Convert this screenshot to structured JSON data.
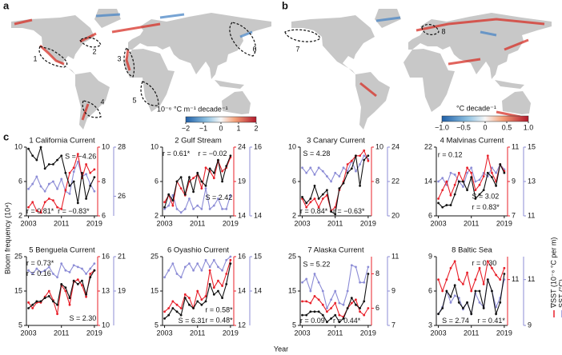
{
  "figure": {
    "panel_c_label": "c",
    "y_label": "Bloom frequency (10⁴)",
    "x_label": "Year",
    "legend": [
      {
        "name": "∇SST (10⁻⁶ °C per m)",
        "color": "#e8202a"
      },
      {
        "name": "SST (°C)",
        "color": "#8c8cd6"
      }
    ]
  },
  "maps": [
    {
      "label": "a",
      "colorbar_label": "10⁻⁶ °C m⁻¹ decade⁻¹",
      "colorbar_ticks": [
        {
          "value": -2,
          "label": "−2"
        },
        {
          "value": -1,
          "label": "−1"
        },
        0,
        1,
        2
      ],
      "colorbar_lim": [
        -2,
        2
      ],
      "regions": [
        "1",
        "2",
        "3",
        "4",
        "5",
        "6"
      ]
    },
    {
      "label": "b",
      "colorbar_label": "°C decade⁻¹",
      "colorbar_ticks": [
        {
          "value": -1,
          "label": "−1.0"
        },
        {
          "value": -0.5,
          "label": "−0.5"
        },
        0,
        {
          "value": 0.5,
          "label": "0.5"
        },
        {
          "value": 1,
          "label": "1.0"
        }
      ],
      "colorbar_lim": [
        -1,
        1
      ],
      "regions": [
        "7",
        "8"
      ]
    }
  ],
  "chart_data": [
    {
      "type": "line",
      "title": "1 California Current",
      "x": [
        2003,
        2004,
        2005,
        2006,
        2007,
        2008,
        2009,
        2010,
        2011,
        2012,
        2013,
        2014,
        2015,
        2016,
        2017,
        2018,
        2019
      ],
      "xlim": [
        2002.5,
        2019.8
      ],
      "xticks": [
        2003,
        2011,
        2019
      ],
      "ylim": [
        2,
        10
      ],
      "yticks": [
        2,
        6,
        10
      ],
      "y2lim": [
        6,
        10
      ],
      "y2ticks": [
        6,
        8,
        10
      ],
      "y3lim": [
        25.2,
        28
      ],
      "y3ticks": [
        26,
        28
      ],
      "series": [
        {
          "color": "#111111",
          "values": [
            9.8,
            9,
            8.5,
            10,
            7.5,
            8,
            8,
            8.5,
            9,
            7,
            5.5,
            6,
            3.5,
            7,
            4,
            5.5,
            6.5
          ]
        },
        {
          "color": "#e8202a",
          "axis": "y2",
          "values": [
            6.5,
            6.8,
            6.3,
            6.2,
            6.8,
            7,
            6.9,
            6.5,
            6.4,
            7.5,
            8.5,
            8.8,
            9.6,
            8.2,
            9,
            8.5,
            8.7
          ]
        },
        {
          "color": "#8c8cd6",
          "axis": "y3",
          "values": [
            26.3,
            26.5,
            26.8,
            26.4,
            26.2,
            26.5,
            26.6,
            26.3,
            26.7,
            26.2,
            26.1,
            27,
            27.4,
            26.8,
            26.9,
            26.5,
            26.2
          ]
        }
      ],
      "annotations": [
        {
          "text": "S = −4.26",
          "color": "#111111"
        },
        {
          "text": "r = 0.81*",
          "color": "#e8202a"
        },
        {
          "text": "r = −0.83*",
          "color": "#8c8cd6"
        }
      ]
    },
    {
      "type": "line",
      "title": "2 Gulf Stream",
      "x": [
        2003,
        2004,
        2005,
        2006,
        2007,
        2008,
        2009,
        2010,
        2011,
        2012,
        2013,
        2014,
        2015,
        2016,
        2017,
        2018,
        2019
      ],
      "xlim": [
        2002.5,
        2019.8
      ],
      "xticks": [
        2003,
        2011,
        2019
      ],
      "ylim": [
        2,
        10
      ],
      "yticks": [
        2,
        6,
        10
      ],
      "y2lim": [
        14,
        24
      ],
      "y2ticks": [
        14,
        19,
        24
      ],
      "y3lim": [
        14,
        16
      ],
      "y3ticks": [
        14,
        16
      ],
      "series": [
        {
          "color": "#111111",
          "values": [
            3,
            4.5,
            3.8,
            6,
            6.5,
            4.5,
            6.5,
            4.8,
            7,
            6,
            5.5,
            7.5,
            7,
            8.5,
            6,
            7.8,
            9
          ]
        },
        {
          "color": "#e8202a",
          "axis": "y2",
          "values": [
            16,
            17,
            15.5,
            19,
            18,
            17,
            19,
            19.5,
            20,
            18,
            21,
            20.5,
            19.5,
            22,
            20.5,
            21,
            22.5
          ]
        },
        {
          "color": "#8c8cd6",
          "axis": "y3",
          "values": [
            14.2,
            14.3,
            14.6,
            14.2,
            14.1,
            14.2,
            14.5,
            14.2,
            14.3,
            14.2,
            14.8,
            14.2,
            14.3,
            14.5,
            14.2,
            14.2,
            14.6
          ]
        }
      ],
      "annotations": [
        {
          "text": "r = 0.61*",
          "color": "#e8202a"
        },
        {
          "text": "r = −0.02",
          "color": "#8c8cd6"
        },
        {
          "text": "S = 2.42",
          "color": "#111111"
        }
      ]
    },
    {
      "type": "line",
      "title": "3 Canary Current",
      "x": [
        2003,
        2004,
        2005,
        2006,
        2007,
        2008,
        2009,
        2010,
        2011,
        2012,
        2013,
        2014,
        2015,
        2016,
        2017,
        2018,
        2019
      ],
      "xlim": [
        2002.5,
        2019.8
      ],
      "xticks": [
        2003,
        2011,
        2019
      ],
      "ylim": [
        2,
        10
      ],
      "yticks": [
        2,
        6,
        10
      ],
      "y2lim": [
        6,
        10
      ],
      "y2ticks": [
        8,
        10
      ],
      "y3lim": [
        20,
        24
      ],
      "y3ticks": [
        20,
        22,
        24
      ],
      "series": [
        {
          "color": "#111111",
          "values": [
            4.2,
            3.5,
            4,
            5.5,
            4,
            4.5,
            5,
            2.5,
            2.2,
            5.2,
            5.8,
            7,
            7.5,
            9,
            5.5,
            8.5,
            9
          ]
        },
        {
          "color": "#e8202a",
          "axis": "y2",
          "values": [
            7,
            6.5,
            6.8,
            7,
            6.5,
            7,
            7.2,
            6.3,
            6.5,
            7.5,
            8,
            9,
            9.2,
            9.5,
            9.5,
            9.8,
            9.2
          ]
        },
        {
          "color": "#8c8cd6",
          "axis": "y3",
          "values": [
            22.8,
            22.5,
            22.8,
            22.4,
            22.8,
            22.6,
            22.3,
            22,
            22.5,
            22.3,
            22.8,
            22.6,
            23.2,
            22.6,
            23,
            23.5,
            23.3
          ]
        }
      ],
      "annotations": [
        {
          "text": "S = 4.28",
          "color": "#111111"
        },
        {
          "text": "r = 0.84*",
          "color": "#e8202a"
        },
        {
          "text": "r = −0.63*",
          "color": "#8c8cd6"
        }
      ]
    },
    {
      "type": "line",
      "title": "4 Malvinas Current",
      "x": [
        2003,
        2004,
        2005,
        2006,
        2007,
        2008,
        2009,
        2010,
        2011,
        2012,
        2013,
        2014,
        2015,
        2016,
        2017,
        2018,
        2019
      ],
      "xlim": [
        2002.5,
        2019.8
      ],
      "xticks": [
        2003,
        2011,
        2019
      ],
      "ylim": [
        6,
        22
      ],
      "yticks": [
        6,
        14,
        22
      ],
      "y2lim": [
        7,
        11
      ],
      "y2ticks": [
        7,
        9,
        11
      ],
      "y3lim": [
        11,
        15
      ],
      "y3ticks": [
        11,
        13,
        15
      ],
      "series": [
        {
          "color": "#111111",
          "values": [
            9,
            8,
            8.5,
            8.5,
            11,
            14,
            14,
            12,
            15,
            10,
            11,
            12,
            16,
            15,
            13,
            18,
            16
          ]
        },
        {
          "color": "#e8202a",
          "axis": "y2",
          "values": [
            8,
            8.5,
            9,
            8.2,
            8.8,
            9.5,
            9,
            9.8,
            9.5,
            8.5,
            8.8,
            9.3,
            10.5,
            9.5,
            9,
            10,
            9.6
          ]
        },
        {
          "color": "#8c8cd6",
          "axis": "y3",
          "values": [
            13,
            13.2,
            12.8,
            13.5,
            13.4,
            13,
            12.7,
            13.5,
            13.8,
            13,
            13.1,
            13.5,
            13.3,
            13.8,
            13.5,
            14,
            13.7
          ]
        }
      ],
      "annotations": [
        {
          "text": "r = 0.12",
          "color": "#8c8cd6"
        },
        {
          "text": "S = 3.02",
          "color": "#111111"
        },
        {
          "text": "r = 0.83*",
          "color": "#e8202a"
        }
      ]
    },
    {
      "type": "line",
      "title": "5 Benguela Current",
      "x": [
        2003,
        2004,
        2005,
        2006,
        2007,
        2008,
        2009,
        2010,
        2011,
        2012,
        2013,
        2014,
        2015,
        2016,
        2017,
        2018,
        2019
      ],
      "xlim": [
        2002.5,
        2019.8
      ],
      "xticks": [
        2003,
        2011,
        2019
      ],
      "ylim": [
        5,
        25
      ],
      "yticks": [
        5,
        15,
        25
      ],
      "y2lim": [
        10,
        16
      ],
      "y2ticks": [
        10,
        13,
        16
      ],
      "y3lim": [
        17,
        21
      ],
      "y3ticks": [
        19,
        21
      ],
      "series": [
        {
          "color": "#111111",
          "values": [
            10,
            11,
            12,
            12,
            13,
            13.5,
            12,
            11,
            17,
            16,
            13,
            18,
            17,
            18,
            14,
            19,
            21
          ]
        },
        {
          "color": "#e8202a",
          "axis": "y2",
          "values": [
            12,
            11.5,
            12,
            12,
            12.5,
            13,
            12.2,
            11,
            13.5,
            13,
            11.8,
            13.8,
            14,
            13.5,
            12.5,
            14.5,
            14.8
          ]
        },
        {
          "color": "#8c8cd6",
          "axis": "y3",
          "values": [
            20.2,
            20,
            20.3,
            20.1,
            20.2,
            20.4,
            20,
            19.8,
            20.6,
            20.2,
            20.1,
            20.5,
            20.4,
            20.3,
            20,
            20.3,
            20.6
          ]
        }
      ],
      "annotations": [
        {
          "text": "r = 0.73*",
          "color": "#e8202a"
        },
        {
          "text": "r = 0.16",
          "color": "#8c8cd6"
        },
        {
          "text": "S = 2.30",
          "color": "#111111"
        }
      ]
    },
    {
      "type": "line",
      "title": "6 Oyashio Current",
      "x": [
        2003,
        2004,
        2005,
        2006,
        2007,
        2008,
        2009,
        2010,
        2011,
        2012,
        2013,
        2014,
        2015,
        2016,
        2017,
        2018,
        2019
      ],
      "xlim": [
        2002.5,
        2019.8
      ],
      "xticks": [
        2003,
        2011,
        2019
      ],
      "ylim": [
        5,
        25
      ],
      "yticks": [
        5,
        15,
        25
      ],
      "y2lim": [
        12,
        16
      ],
      "y2ticks": [
        12,
        14,
        16
      ],
      "y3lim": [
        13,
        15
      ],
      "y3ticks": [
        14,
        15
      ],
      "series": [
        {
          "color": "#111111",
          "values": [
            7,
            8,
            10,
            9,
            8,
            13,
            11,
            10,
            12,
            11,
            12,
            17,
            14,
            15,
            13,
            17,
            23
          ]
        },
        {
          "color": "#e8202a",
          "axis": "y2",
          "values": [
            12.8,
            13,
            13.4,
            13.2,
            13,
            13.8,
            13.6,
            13,
            14,
            13.5,
            13.7,
            15.2,
            14.2,
            14.6,
            14.3,
            15,
            15.8
          ]
        },
        {
          "color": "#8c8cd6",
          "axis": "y3",
          "values": [
            14.4,
            14.6,
            14.8,
            14.5,
            14.4,
            14.7,
            14.8,
            14.6,
            14.8,
            14.6,
            14.9,
            14.7,
            14.9,
            14.7,
            14.6,
            14.9,
            15
          ]
        }
      ],
      "annotations": [
        {
          "text": "S = 6.31",
          "color": "#111111"
        },
        {
          "text": "r = 0.58*",
          "color": "#e8202a"
        },
        {
          "text": "r = 0.48*",
          "color": "#8c8cd6"
        }
      ]
    },
    {
      "type": "line",
      "title": "7 Alaska Current",
      "x": [
        2003,
        2004,
        2005,
        2006,
        2007,
        2008,
        2009,
        2010,
        2011,
        2012,
        2013,
        2014,
        2015,
        2016,
        2017,
        2018,
        2019
      ],
      "xlim": [
        2002.5,
        2019.8
      ],
      "xticks": [
        2003,
        2011,
        2019
      ],
      "ylim": [
        5,
        25
      ],
      "yticks": [
        5,
        15,
        25
      ],
      "y2lim": [
        5,
        9
      ],
      "y2ticks": [
        6,
        8
      ],
      "y3lim": [
        7,
        11
      ],
      "y3ticks": [
        7,
        9,
        11
      ],
      "series": [
        {
          "color": "#111111",
          "values": [
            8,
            8,
            9,
            9,
            9,
            8,
            6,
            7,
            8,
            6,
            7,
            10,
            13,
            11,
            10,
            12,
            20
          ]
        },
        {
          "color": "#e8202a",
          "axis": "y2",
          "values": [
            6.4,
            6.4,
            6.3,
            6.7,
            6.5,
            6.2,
            5.8,
            6,
            6.3,
            5.6,
            5.5,
            6,
            6.3,
            6.5,
            5.8,
            5.6,
            6
          ]
        },
        {
          "color": "#8c8cd6",
          "axis": "y3",
          "values": [
            9.5,
            9.7,
            9,
            10,
            9.5,
            9,
            8,
            8.5,
            9,
            8.3,
            8.2,
            9,
            10.5,
            10.4,
            9.5,
            9.5,
            10.4
          ]
        }
      ],
      "annotations": [
        {
          "text": "S = 5.22",
          "color": "#111111"
        },
        {
          "text": "r = 0.09",
          "color": "#e8202a"
        },
        {
          "text": "r = 0.44*",
          "color": "#8c8cd6"
        }
      ]
    },
    {
      "type": "line",
      "title": "8 Baltic Sea",
      "x": [
        2003,
        2004,
        2005,
        2006,
        2007,
        2008,
        2009,
        2010,
        2011,
        2012,
        2013,
        2014,
        2015,
        2016,
        2017,
        2018,
        2019
      ],
      "xlim": [
        2002.5,
        2019.8
      ],
      "xticks": [
        2003,
        2011,
        2019
      ],
      "ylim": [
        3,
        9
      ],
      "yticks": [
        3,
        6,
        9
      ],
      "y2lim": [
        9,
        12
      ],
      "y2ticks": [
        11
      ],
      "y3lim": [
        9,
        12
      ],
      "y3ticks": [
        9,
        11
      ],
      "series": [
        {
          "color": "#111111",
          "values": [
            4,
            4.5,
            6,
            5.5,
            6.5,
            5,
            4.5,
            5,
            4,
            6,
            6,
            4.5,
            7,
            6,
            4,
            5,
            7.5
          ]
        },
        {
          "color": "#e8202a",
          "axis": "y2",
          "values": [
            11,
            10.5,
            11,
            11.5,
            11.8,
            11,
            10.8,
            11.3,
            10.5,
            11,
            11.5,
            10.8,
            11.8,
            11.5,
            11.2,
            11,
            11.5
          ]
        },
        {
          "color": "#8c8cd6",
          "axis": "y3",
          "values": [
            9.5,
            9.8,
            10.5,
            10,
            10.3,
            10.2,
            9.7,
            10,
            9.5,
            10.4,
            10,
            9.8,
            11,
            10.5,
            9.8,
            10.2,
            11
          ]
        }
      ],
      "annotations": [
        {
          "text": "r = 0.30",
          "color": "#e8202a"
        },
        {
          "text": "S = 2.74",
          "color": "#111111"
        },
        {
          "text": "r = 0.41*",
          "color": "#8c8cd6"
        }
      ]
    }
  ]
}
